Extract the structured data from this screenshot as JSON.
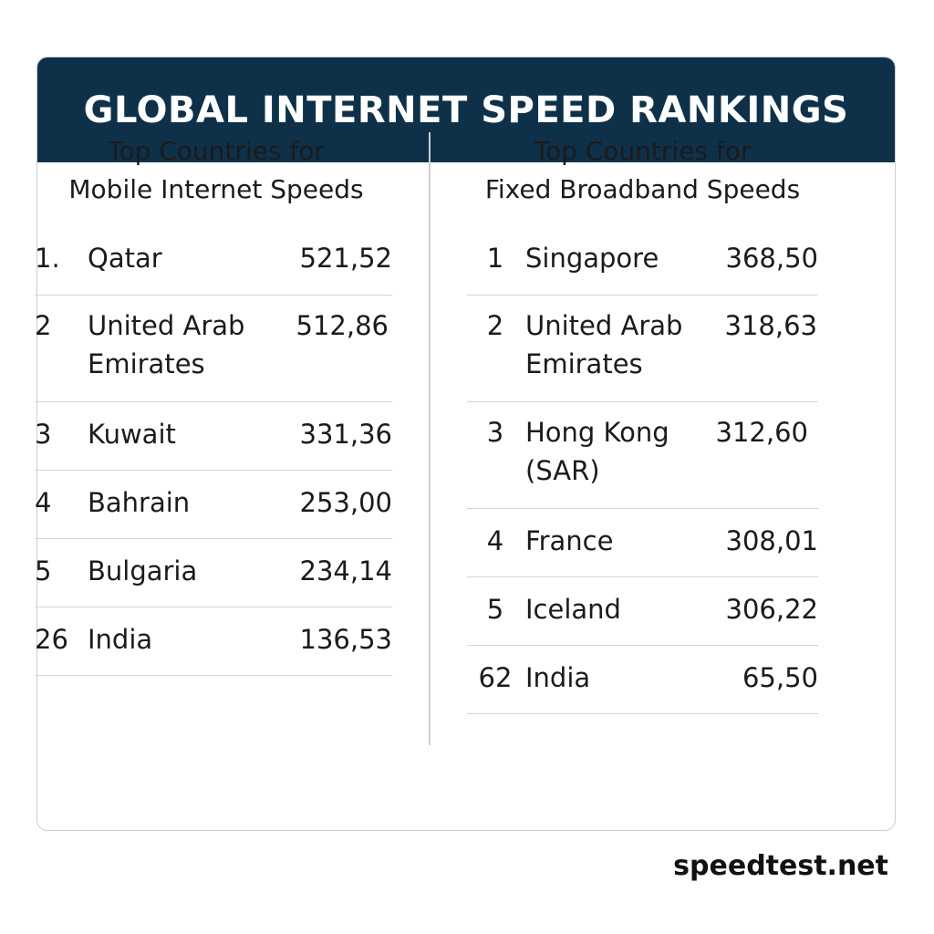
{
  "header": {
    "title": "GLOBAL INTERNET SPEED RANKINGS"
  },
  "mobile": {
    "title_line1": "Top Countries for",
    "title_line2": "Mobile Internet Speeds",
    "rows": [
      {
        "rank": "1.",
        "country": "Qatar",
        "speed": "521,52"
      },
      {
        "rank": "2",
        "country": "United Arab Emirates",
        "speed": "512,86"
      },
      {
        "rank": "3",
        "country": "Kuwait",
        "speed": "331,36"
      },
      {
        "rank": "4",
        "country": "Bahrain",
        "speed": "253,00"
      },
      {
        "rank": "5",
        "country": "Bulgaria",
        "speed": "234,14"
      },
      {
        "rank": "26",
        "country": "India",
        "speed": "136,53"
      }
    ]
  },
  "fixed": {
    "title_line1": "Top Countries for",
    "title_line2": "Fixed Broadband Speeds",
    "rows": [
      {
        "rank": "1",
        "country": "Singapore",
        "speed": "368,50"
      },
      {
        "rank": "2",
        "country": "United Arab Emirates",
        "speed": "318,63"
      },
      {
        "rank": "3",
        "country": "Hong Kong (SAR)",
        "speed": "312,60"
      },
      {
        "rank": "4",
        "country": "France",
        "speed": "308,01"
      },
      {
        "rank": "5",
        "country": "Iceland",
        "speed": "306,22"
      },
      {
        "rank": "62",
        "country": "India",
        "speed": "65,50"
      }
    ]
  },
  "footer": {
    "source": "speedtest.net"
  }
}
